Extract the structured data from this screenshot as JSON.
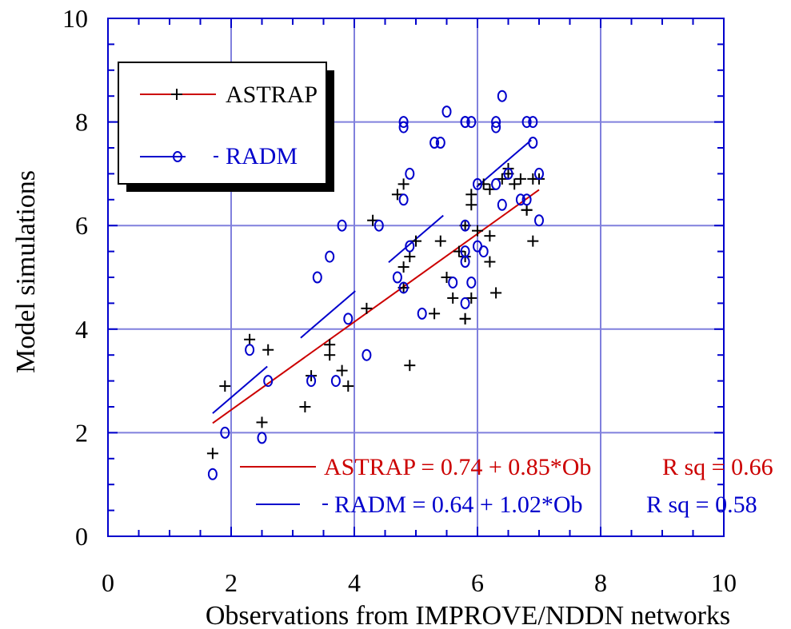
{
  "chart_data": {
    "type": "scatter",
    "xlabel": "Observations from IMPROVE/NDDN networks",
    "ylabel": "Model simulations",
    "xlim": [
      0,
      10
    ],
    "ylim": [
      0,
      10
    ],
    "x_ticks": [
      "0",
      "2",
      "4",
      "6",
      "8",
      "10"
    ],
    "y_ticks": [
      "0",
      "2",
      "4",
      "6",
      "8",
      "10"
    ],
    "grid": true,
    "legend": {
      "placement": "top-left",
      "entries": [
        {
          "label": "ASTRAP",
          "color": "#cc0000",
          "marker": "+"
        },
        {
          "label": "RADM",
          "color": "#0000cc",
          "marker": "o"
        }
      ]
    },
    "annotations": [
      {
        "text": "ASTRAP = 0.74 + 0.85*Ob",
        "color": "#cc0000"
      },
      {
        "text": "R sq = 0.66",
        "color": "#cc0000"
      },
      {
        "text": "RADM = 0.64 + 1.02*Ob",
        "color": "#0000cc"
      },
      {
        "text": "R sq = 0.58",
        "color": "#0000cc"
      }
    ],
    "series": [
      {
        "name": "ASTRAP",
        "color": "#cc0000",
        "marker": "+",
        "marker_color": "#000000",
        "fit": {
          "intercept": 0.74,
          "slope": 0.85,
          "x_range": [
            1.7,
            7.0
          ]
        },
        "points": [
          [
            1.7,
            1.6
          ],
          [
            1.9,
            2.9
          ],
          [
            2.3,
            3.8
          ],
          [
            2.5,
            2.2
          ],
          [
            2.6,
            3.6
          ],
          [
            3.2,
            2.5
          ],
          [
            3.3,
            3.1
          ],
          [
            3.6,
            3.5
          ],
          [
            3.6,
            3.7
          ],
          [
            3.8,
            3.2
          ],
          [
            3.9,
            2.9
          ],
          [
            4.2,
            4.4
          ],
          [
            4.3,
            6.1
          ],
          [
            4.7,
            6.6
          ],
          [
            4.8,
            6.8
          ],
          [
            4.8,
            5.2
          ],
          [
            4.8,
            4.8
          ],
          [
            4.9,
            5.4
          ],
          [
            4.9,
            3.3
          ],
          [
            5.0,
            5.7
          ],
          [
            5.3,
            4.3
          ],
          [
            5.4,
            5.7
          ],
          [
            5.5,
            5.0
          ],
          [
            5.6,
            4.6
          ],
          [
            5.7,
            5.5
          ],
          [
            5.8,
            4.2
          ],
          [
            5.8,
            4.2
          ],
          [
            5.8,
            5.4
          ],
          [
            5.8,
            6.0
          ],
          [
            5.9,
            6.6
          ],
          [
            5.9,
            6.4
          ],
          [
            5.9,
            4.6
          ],
          [
            6.0,
            5.9
          ],
          [
            6.1,
            6.8
          ],
          [
            6.2,
            6.7
          ],
          [
            6.2,
            5.8
          ],
          [
            6.2,
            5.3
          ],
          [
            6.3,
            4.7
          ],
          [
            6.4,
            6.9
          ],
          [
            6.5,
            7.1
          ],
          [
            6.5,
            7.0
          ],
          [
            6.6,
            6.8
          ],
          [
            6.7,
            6.9
          ],
          [
            6.8,
            6.3
          ],
          [
            6.8,
            6.3
          ],
          [
            6.9,
            6.9
          ],
          [
            6.9,
            5.7
          ],
          [
            7.0,
            6.9
          ]
        ]
      },
      {
        "name": "RADM",
        "color": "#0000cc",
        "marker": "o",
        "marker_color": "#0000cc",
        "fit": {
          "intercept": 0.64,
          "slope": 1.02,
          "x_range": [
            1.7,
            7.0
          ]
        },
        "points": [
          [
            1.7,
            1.2
          ],
          [
            1.9,
            2.0
          ],
          [
            2.3,
            3.6
          ],
          [
            2.5,
            1.9
          ],
          [
            2.6,
            3.0
          ],
          [
            3.3,
            3.0
          ],
          [
            3.4,
            5.0
          ],
          [
            3.6,
            5.4
          ],
          [
            3.7,
            3.0
          ],
          [
            3.8,
            6.0
          ],
          [
            3.9,
            4.2
          ],
          [
            4.2,
            3.5
          ],
          [
            4.4,
            6.0
          ],
          [
            4.7,
            5.0
          ],
          [
            4.8,
            4.8
          ],
          [
            4.8,
            6.5
          ],
          [
            4.8,
            7.9
          ],
          [
            4.8,
            8.0
          ],
          [
            4.9,
            7.0
          ],
          [
            4.9,
            5.6
          ],
          [
            5.1,
            4.3
          ],
          [
            5.3,
            7.6
          ],
          [
            5.4,
            7.6
          ],
          [
            5.5,
            8.2
          ],
          [
            5.6,
            4.9
          ],
          [
            5.8,
            8.0
          ],
          [
            5.8,
            8.0
          ],
          [
            5.8,
            4.5
          ],
          [
            5.8,
            5.3
          ],
          [
            5.8,
            5.5
          ],
          [
            5.8,
            6.0
          ],
          [
            5.9,
            8.0
          ],
          [
            5.9,
            4.9
          ],
          [
            6.0,
            6.8
          ],
          [
            6.0,
            5.6
          ],
          [
            6.1,
            5.5
          ],
          [
            6.3,
            8.0
          ],
          [
            6.3,
            7.9
          ],
          [
            6.3,
            6.8
          ],
          [
            6.4,
            8.5
          ],
          [
            6.4,
            6.4
          ],
          [
            6.5,
            7.0
          ],
          [
            6.7,
            6.5
          ],
          [
            6.8,
            8.0
          ],
          [
            6.8,
            6.5
          ],
          [
            6.9,
            7.6
          ],
          [
            6.9,
            8.0
          ],
          [
            7.0,
            7.0
          ],
          [
            7.0,
            6.1
          ]
        ]
      }
    ]
  }
}
